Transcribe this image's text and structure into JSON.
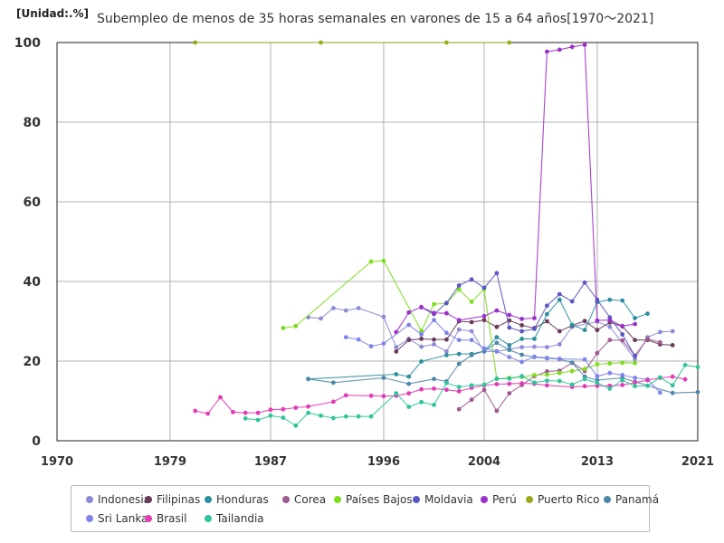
{
  "unit_label": "[Unidad:.%]",
  "chart_data": {
    "type": "line",
    "title": "Subempleo de menos de 35 horas semanales en varones de 15 a 64 años[1970～2021]",
    "xlabel": "",
    "ylabel": "",
    "xlim": [
      1970,
      2021
    ],
    "ylim": [
      0,
      100
    ],
    "x_ticks": [
      "1970",
      "1979",
      "1987",
      "1996",
      "2004",
      "2013",
      "2021"
    ],
    "y_ticks": [
      "0",
      "20",
      "40",
      "60",
      "80",
      "100"
    ],
    "grid": true,
    "legend": "bottom",
    "series": [
      {
        "name": "Indonesia",
        "color": "#8b8bd6",
        "points": [
          [
            1990,
            31
          ],
          [
            1991,
            30.7
          ],
          [
            1992,
            33.3
          ],
          [
            1993,
            32.7
          ],
          [
            1994,
            33.3
          ],
          [
            1996,
            31.1
          ],
          [
            1997,
            23.5
          ],
          [
            1998,
            25.6
          ],
          [
            1999,
            23.6
          ],
          [
            2000,
            24.2
          ],
          [
            2001,
            22.4
          ],
          [
            2002,
            27.9
          ],
          [
            2003,
            27.5
          ],
          [
            2004,
            22.4
          ],
          [
            2005,
            22.4
          ],
          [
            2006,
            23
          ],
          [
            2007,
            23.5
          ],
          [
            2008,
            23.6
          ],
          [
            2009,
            23.5
          ],
          [
            2010,
            24.2
          ],
          [
            2011,
            28.6
          ],
          [
            2013,
            29.9
          ],
          [
            2014,
            28.6
          ],
          [
            2016,
            20.6
          ],
          [
            2017,
            26
          ],
          [
            2018,
            27.3
          ],
          [
            2019,
            27.5
          ]
        ]
      },
      {
        "name": "Filipinas",
        "color": "#6a3b5a",
        "points": [
          [
            1997,
            22.4
          ],
          [
            1998,
            25.3
          ],
          [
            1999,
            25.6
          ],
          [
            2000,
            25.4
          ],
          [
            2001,
            25.4
          ],
          [
            2002,
            30
          ],
          [
            2003,
            29.8
          ],
          [
            2004,
            30.3
          ],
          [
            2005,
            28.6
          ],
          [
            2006,
            30.2
          ],
          [
            2007,
            29
          ],
          [
            2008,
            28.3
          ],
          [
            2009,
            30
          ],
          [
            2010,
            27.5
          ],
          [
            2011,
            28.9
          ],
          [
            2012,
            30.1
          ],
          [
            2013,
            27.8
          ],
          [
            2014,
            29.7
          ],
          [
            2015,
            28.7
          ],
          [
            2016,
            25.3
          ],
          [
            2017,
            25.3
          ],
          [
            2018,
            24.2
          ],
          [
            2019,
            24
          ]
        ]
      },
      {
        "name": "Honduras",
        "color": "#2b8f9e",
        "points": [
          [
            1990,
            15.5
          ],
          [
            1997,
            16.7
          ],
          [
            1998,
            16.1
          ],
          [
            1999,
            19.9
          ],
          [
            2001,
            21.5
          ],
          [
            2002,
            21.8
          ],
          [
            2003,
            21.8
          ],
          [
            2004,
            22.5
          ],
          [
            2005,
            26
          ],
          [
            2006,
            24
          ],
          [
            2007,
            25.6
          ],
          [
            2008,
            25.6
          ],
          [
            2009,
            31.8
          ],
          [
            2010,
            35.4
          ],
          [
            2011,
            29.1
          ],
          [
            2012,
            27.8
          ],
          [
            2013,
            34.8
          ],
          [
            2014,
            35.4
          ],
          [
            2015,
            35.2
          ],
          [
            2016,
            30.8
          ],
          [
            2017,
            31.9
          ]
        ]
      },
      {
        "name": "Corea",
        "color": "#9e5a8f",
        "points": [
          [
            2002,
            7.9
          ],
          [
            2003,
            10.3
          ],
          [
            2004,
            12.8
          ],
          [
            2005,
            7.5
          ],
          [
            2006,
            11.9
          ],
          [
            2007,
            14
          ],
          [
            2008,
            16.2
          ],
          [
            2009,
            17.4
          ],
          [
            2010,
            17.6
          ],
          [
            2011,
            19.6
          ],
          [
            2012,
            17.5
          ],
          [
            2013,
            22
          ],
          [
            2014,
            25.3
          ],
          [
            2015,
            25.2
          ],
          [
            2016,
            21.4
          ],
          [
            2017,
            25.6
          ],
          [
            2018,
            24.7
          ]
        ]
      },
      {
        "name": "Países Bajos",
        "color": "#7ddc1f",
        "points": [
          [
            1988,
            28.3
          ],
          [
            1989,
            28.8
          ],
          [
            1995,
            45
          ],
          [
            1996,
            45.2
          ],
          [
            1999,
            27.6
          ],
          [
            2000,
            34.3
          ],
          [
            2001,
            34.5
          ],
          [
            2002,
            38
          ],
          [
            2003,
            34.9
          ],
          [
            2004,
            38.1
          ],
          [
            2005,
            15.5
          ],
          [
            2006,
            15.8
          ],
          [
            2007,
            16
          ],
          [
            2008,
            16.5
          ],
          [
            2009,
            16.6
          ],
          [
            2010,
            17
          ],
          [
            2011,
            17.5
          ],
          [
            2012,
            18
          ],
          [
            2013,
            19.2
          ],
          [
            2014,
            19.4
          ],
          [
            2015,
            19.6
          ],
          [
            2016,
            19.5
          ]
        ]
      },
      {
        "name": "Moldavia",
        "color": "#5a57c7",
        "points": [
          [
            1999,
            33.5
          ],
          [
            2000,
            31.8
          ],
          [
            2001,
            34.6
          ],
          [
            2002,
            39
          ],
          [
            2003,
            40.5
          ],
          [
            2004,
            38.4
          ],
          [
            2005,
            42.1
          ],
          [
            2006,
            28.4
          ],
          [
            2007,
            27.5
          ],
          [
            2008,
            28.1
          ],
          [
            2009,
            33.9
          ],
          [
            2010,
            36.8
          ],
          [
            2011,
            35
          ],
          [
            2012,
            39.7
          ],
          [
            2013,
            35.4
          ],
          [
            2014,
            31
          ],
          [
            2015,
            26.7
          ],
          [
            2016,
            21.3
          ]
        ]
      },
      {
        "name": "Perú",
        "color": "#9b30c9",
        "points": [
          [
            1997,
            27.3
          ],
          [
            1998,
            32.2
          ],
          [
            1999,
            33.6
          ],
          [
            2000,
            32.1
          ],
          [
            2001,
            32
          ],
          [
            2002,
            30.3
          ],
          [
            2004,
            31.3
          ],
          [
            2005,
            32.7
          ],
          [
            2006,
            31.6
          ],
          [
            2007,
            30.6
          ],
          [
            2008,
            30.8
          ],
          [
            2009,
            97.7
          ],
          [
            2010,
            98.2
          ],
          [
            2011,
            98.9
          ],
          [
            2012,
            99.4
          ],
          [
            2013,
            30.2
          ],
          [
            2014,
            30.3
          ],
          [
            2015,
            28.8
          ],
          [
            2016,
            29.3
          ]
        ]
      },
      {
        "name": "Puerto Rico",
        "color": "#9aaa1a",
        "points": [
          [
            1981,
            100
          ],
          [
            1991,
            100
          ],
          [
            2001,
            100
          ],
          [
            2006,
            100
          ]
        ]
      },
      {
        "name": "Panamá",
        "color": "#4d86a8",
        "points": [
          [
            1990,
            15.5
          ],
          [
            1992,
            14.6
          ],
          [
            1996,
            15.8
          ],
          [
            1998,
            14.3
          ],
          [
            2000,
            15.5
          ],
          [
            2001,
            14.9
          ],
          [
            2002,
            19.3
          ],
          [
            2003,
            21.5
          ],
          [
            2004,
            22.5
          ],
          [
            2005,
            24.6
          ],
          [
            2006,
            22.8
          ],
          [
            2007,
            21.6
          ],
          [
            2008,
            21
          ],
          [
            2009,
            20.7
          ],
          [
            2010,
            20.5
          ],
          [
            2011,
            19.6
          ],
          [
            2012,
            16.1
          ],
          [
            2013,
            15.2
          ],
          [
            2015,
            15.8
          ],
          [
            2016,
            14.8
          ],
          [
            2019,
            12
          ],
          [
            2021,
            12.2
          ]
        ]
      },
      {
        "name": "Sri Lanka",
        "color": "#7f85e8",
        "points": [
          [
            1993,
            26
          ],
          [
            1994,
            25.4
          ],
          [
            1995,
            23.7
          ],
          [
            1996,
            24.4
          ],
          [
            1998,
            29.1
          ],
          [
            1999,
            26.7
          ],
          [
            2000,
            30.3
          ],
          [
            2001,
            27.1
          ],
          [
            2002,
            25.3
          ],
          [
            2003,
            25.3
          ],
          [
            2004,
            23.2
          ],
          [
            2005,
            22.5
          ],
          [
            2006,
            21
          ],
          [
            2007,
            19.8
          ],
          [
            2008,
            21.1
          ],
          [
            2009,
            20.8
          ],
          [
            2010,
            20.6
          ],
          [
            2012,
            20.4
          ],
          [
            2013,
            16.2
          ],
          [
            2014,
            17
          ],
          [
            2015,
            16.5
          ],
          [
            2016,
            15.8
          ],
          [
            2017,
            15.4
          ],
          [
            2018,
            12.1
          ]
        ]
      },
      {
        "name": "Brasil",
        "color": "#e23cb4",
        "points": [
          [
            1981,
            7.5
          ],
          [
            1982,
            6.8
          ],
          [
            1983,
            10.9
          ],
          [
            1984,
            7.2
          ],
          [
            1985,
            7
          ],
          [
            1986,
            7
          ],
          [
            1987,
            7.8
          ],
          [
            1988,
            7.9
          ],
          [
            1989,
            8.3
          ],
          [
            1990,
            8.6
          ],
          [
            1992,
            9.8
          ],
          [
            1993,
            11.4
          ],
          [
            1995,
            11.3
          ],
          [
            1996,
            11.2
          ],
          [
            1997,
            11.3
          ],
          [
            1998,
            11.9
          ],
          [
            1999,
            12.9
          ],
          [
            2000,
            13.1
          ],
          [
            2001,
            12.8
          ],
          [
            2002,
            12.4
          ],
          [
            2003,
            13.3
          ],
          [
            2004,
            13.9
          ],
          [
            2005,
            14.2
          ],
          [
            2006,
            14.3
          ],
          [
            2007,
            14.4
          ],
          [
            2008,
            14.3
          ],
          [
            2009,
            13.9
          ],
          [
            2011,
            13.5
          ],
          [
            2012,
            13.7
          ],
          [
            2013,
            13.8
          ],
          [
            2014,
            13.8
          ],
          [
            2015,
            14
          ],
          [
            2016,
            14.6
          ],
          [
            2017,
            15.2
          ],
          [
            2018,
            15.8
          ],
          [
            2019,
            16.1
          ],
          [
            2020,
            15.4
          ]
        ]
      },
      {
        "name": "Tailandia",
        "color": "#2fc49a",
        "points": [
          [
            1985,
            5.6
          ],
          [
            1986,
            5.2
          ],
          [
            1987,
            6.3
          ],
          [
            1988,
            5.8
          ],
          [
            1989,
            3.8
          ],
          [
            1990,
            7
          ],
          [
            1991,
            6.3
          ],
          [
            1992,
            5.7
          ],
          [
            1993,
            6.1
          ],
          [
            1994,
            6.1
          ],
          [
            1995,
            6.1
          ],
          [
            1997,
            11.9
          ],
          [
            1998,
            8.5
          ],
          [
            1999,
            9.7
          ],
          [
            2000,
            9
          ],
          [
            2001,
            14.5
          ],
          [
            2002,
            13.5
          ],
          [
            2003,
            13.9
          ],
          [
            2004,
            14.1
          ],
          [
            2005,
            15.6
          ],
          [
            2006,
            15.6
          ],
          [
            2007,
            16.2
          ],
          [
            2008,
            14.6
          ],
          [
            2009,
            15.1
          ],
          [
            2010,
            15
          ],
          [
            2011,
            14.1
          ],
          [
            2012,
            15.5
          ],
          [
            2013,
            14.5
          ],
          [
            2014,
            13.1
          ],
          [
            2015,
            15.2
          ],
          [
            2016,
            13.7
          ],
          [
            2017,
            13.8
          ],
          [
            2018,
            15.9
          ],
          [
            2019,
            13.9
          ],
          [
            2020,
            19
          ],
          [
            2021,
            18.5
          ]
        ]
      }
    ]
  }
}
